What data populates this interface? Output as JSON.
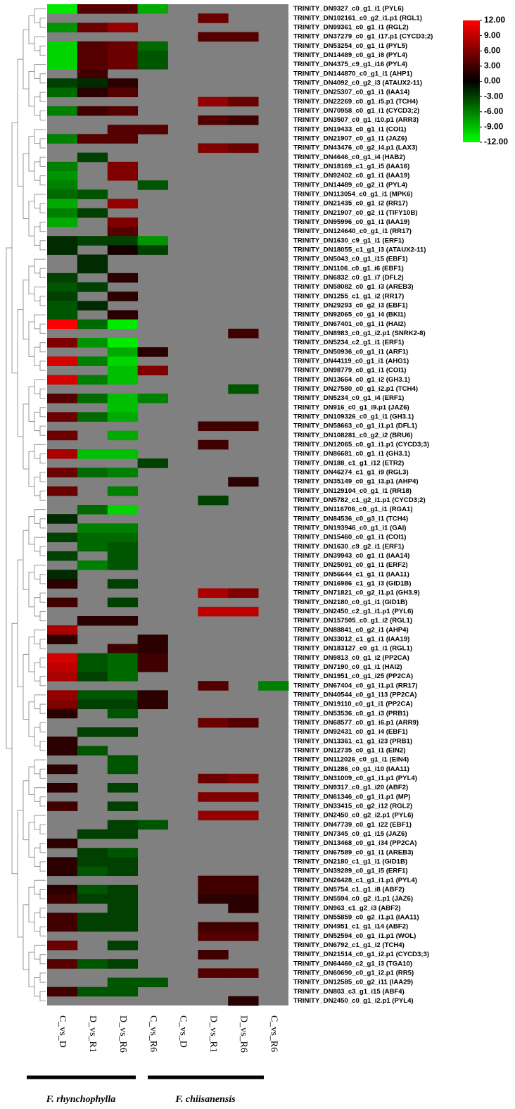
{
  "chart_data": {
    "type": "heatmap",
    "rows": [
      "TRINITY_DN9327_c0_g1_i1 (PYL6)",
      "TRINITY_DN102161_c0_g2_i1.p1 (RGL1)",
      "TRINITY_DN99361_c0_g1_i1 (RGL2)",
      "TRINITY_DN37279_c0_g1_i17.p1 (CYCD3;2)",
      "TRINITY_DN53254_c0_g1_i1 (PYL5)",
      "TRINITY_DN14489_c0_g1_i8 (PYL4)",
      "TRINITY_DN4375_c9_g1_i16 (PYL4)",
      "TRINITY_DN144870_c0_g1_i1 (AHP1)",
      "TRINITY_DN4092_c0_g2_i3 (ATAUX2-11)",
      "TRINITY_DN25307_c0_g1_i1 (IAA14)",
      "TRINITY_DN22269_c0_g1_i5.p1 (TCH4)",
      "TRINITY_DN70958_c0_g1_i1 (CYCD3;2)",
      "TRINITY_DN3507_c0_g1_i10.p1 (ARR3)",
      "TRINITY_DN19433_c0_g1_i1 (COI1)",
      "TRINITY_DN21907_c0_g1_i1 (JAZ6)",
      "TRINITY_DN43476_c0_g2_i4.p1 (LAX3)",
      "TRINITY_DN4646_c0_g1_i4 (HAB2)",
      "TRINITY_DN18169_c1_g1_i5 (IAA16)",
      "TRINITY_DN92402_c0_g1_i1 (IAA19)",
      "TRINITY_DN14489_c0_g2_i1 (PYL4)",
      "TRINITY_DN113054_c0_g1_i1 (MPK6)",
      "TRINITY_DN21435_c0_g1_i2 (RR17)",
      "TRINITY_DN21907_c0_g2_i1 (TIFY10B)",
      "TRINITY_DN95996_c0_g1_i1 (IAA19)",
      "TRINITY_DN124640_c0_g1_i1 (RR17)",
      "TRINITY_DN1630_c9_g1_i1 (ERF1)",
      "TRINITY_DN18055_c1_g1_i3 (ATAUX2-11)",
      "TRINITY_DN5043_c0_g1_i15 (EBF1)",
      "TRINITY_DN1106_c0_g1_i6 (EBF1)",
      "TRINITY_DN6832_c0_g1_i7 (DFL2)",
      "TRINITY_DN58082_c0_g1_i3 (AREB3)",
      "TRINITY_DN1255_c1_g1_i2 (RR17)",
      "TRINITY_DN29293_c0_g2_i3 (EBF1)",
      "TRINITY_DN92065_c0_g1_i4 (BKI1)",
      "TRINITY_DN67401_c0_g1_i1 (HAI2)",
      "TRINITY_DN8983_c0_g1_i2.p1 (SNRK2-8)",
      "TRINITY_DN5234_c2_g1_i1 (ERF1)",
      "TRINITY_DN50936_c0_g1_i1 (ARF1)",
      "TRINITY_DN44119_c0_g1_i1 (AHG1)",
      "TRINITY_DN98779_c0_g1_i1 (COI1)",
      "TRINITY_DN13664_c0_g1_i2 (GH3.1)",
      "TRINITY_DN27580_c0_g1_i2.p1 (TCH4)",
      "TRINITY_DN5234_c0_g1_i4 (ERF1)",
      "TRINITY_DN916_c0_g1_i9.p1 (JAZ6)",
      "TRINITY_DN109326_c0_g1_i1 (GH3.1)",
      "TRINITY_DN58663_c0_g1_i1.p1 (DFL1)",
      "TRINITY_DN108281_c0_g2_i2 (BRU6)",
      "TRINITY_DN12065_c0_g1_i1.p1 (CYCD3;3)",
      "TRINITY_DN86681_c0_g1_i1 (GH3.1)",
      "TRINITY_DN188_c1_g1_i12 (ETR2)",
      "TRINITY_DN46274_c1_g1_i9 (RGL3)",
      "TRINITY_DN35149_c0_g1_i3.p1 (AHP4)",
      "TRINITY_DN129104_c0_g1_i1 (RR18)",
      "TRINITY_DN5782_c1_g2_i1.p1 (CYCD3;2)",
      "TRINITY_DN116706_c0_g1_i1 (RGA1)",
      "TRINITY_DN84536_c0_g3_i1 (TCH4)",
      "TRINITY_DN193946_c0_g1_i1 (GAI)",
      "TRINITY_DN15460_c0_g1_i1 (COI1)",
      "TRINITY_DN1630_c9_g2_i1 (ERF1)",
      "TRINITY_DN39943_c0_g1_i1 (IAA14)",
      "TRINITY_DN25091_c0_g1_i1 (ERF2)",
      "TRINITY_DN56644_c1_g1_i1 (IAA11)",
      "TRINITY_DN16986_c1_g1_i3 (GID1B)",
      "TRINITY_DN71821_c0_g2_i1.p1 (GH3.9)",
      "TRINITY_DN2180_c0_g1_i1 (GID1B)",
      "TRINITY_DN2450_c2_g1_i1.p1 (PYL6)",
      "TRINITY_DN157505_c0_g1_i2 (RGL1)",
      "TRINITY_DN88841_c0_g2_i1 (AHP4)",
      "TRINITY_DN33012_c1_g1_i1 (IAA19)",
      "TRINITY_DN183127_c0_g1_i1 (RGL1)",
      "TRINITY_DN9813_c0_g1_i2 (PP2CA)",
      "TRINITY_DN7190_c0_g1_i1 (HAI2)",
      "TRINITY_DN1951_c0_g1_i25 (PP2CA)",
      "TRINITY_DN67404_c0_g1_i1.p1 (RR17)",
      "TRINITY_DN40544_c0_g1_i13 (PP2CA)",
      "TRINITY_DN19110_c0_g1_i1 (PP2CA)",
      "TRINITY_DN53536_c0_g1_i3 (PRB1)",
      "TRINITY_DN68577_c0_g1_i6.p1 (ARR9)",
      "TRINITY_DN92431_c0_g1_i4 (EBF1)",
      "TRINITY_DN13361_c1_g1_i23 (PRB1)",
      "TRINITY_DN12735_c0_g1_i1 (EIN2)",
      "TRINITY_DN112026_c0_g1_i1 (EIN4)",
      "TRINITY_DN1286_c0_g1_i10 (IAA11)",
      "TRINITY_DN31009_c0_g1_i1.p1 (PYL4)",
      "TRINITY_DN9317_c0_g1_i20 (ABF2)",
      "TRINITY_DN61346_c0_g1_i1.p1 (MP)",
      "TRINITY_DN33415_c0_g2_i12 (RGL2)",
      "TRINITY_DN2450_c0_g2_i2.p1 (PYL6)",
      "TRINITY_DN47739_c0_g1_i22 (EBF1)",
      "TRINITY_DN7345_c0_g1_i15 (JAZ6)",
      "TRINITY_DN13468_c0_g1_i34 (PP2CA)",
      "TRINITY_DN67589_c0_g1_i1 (AREB3)",
      "TRINITY_DN2180_c1_g1_i1 (GID1B)",
      "TRINITY_DN39289_c0_g1_i5 (ERF1)",
      "TRINITY_DN26428_c1_g1_i1.p1 (PYL4)",
      "TRINITY_DN5754_c1_g1_i8 (ABF2)",
      "TRINITY_DN5594_c0_g2_i1.p1 (JAZ6)",
      "TRINITY_DN963_c1_g2_i3 (ABF2)",
      "TRINITY_DN55859_c0_g2_i1.p1 (IAA11)",
      "TRINITY_DN4951_c1_g1_i14 (ABF2)",
      "TRINITY_DN52594_c0_g1_i1.p1 (WOL)",
      "TRINITY_DN6792_c1_g1_i2 (TCH4)",
      "TRINITY_DN21514_c0_g1_i2.p1 (CYCD3;3)",
      "TRINITY_DN64460_c2_g1_i3 (TGA10)",
      "TRINITY_DN60690_c0_g1_i2.p1 (RR5)",
      "TRINITY_DN12585_c0_g2_i11 (IAA29)",
      "TRINITY_DN803_c3_g1_i15 (ABF4)",
      "TRINITY_DN2450_c0_g1_i2.p1 (PYL4)"
    ],
    "columns": [
      "C_vs_D",
      "D_vs_R1",
      "D_vs_R6",
      "C_vs_R6",
      "C_vs_D",
      "D_vs_R1",
      "D_vs_R6",
      "C_vs_R6"
    ],
    "groups": [
      "F. rhynchophylla",
      "F. chiisanensis"
    ],
    "values": [
      [
        -11,
        4,
        4,
        -8,
        null,
        null,
        null,
        null
      ],
      [
        null,
        null,
        null,
        null,
        null,
        5,
        null,
        null
      ],
      [
        -7,
        5,
        7,
        null,
        null,
        null,
        null,
        null
      ],
      [
        null,
        null,
        null,
        null,
        null,
        4,
        4,
        null
      ],
      [
        -10,
        4,
        5,
        -5,
        null,
        null,
        null,
        null
      ],
      [
        -10,
        4,
        5,
        -4,
        null,
        null,
        null,
        null
      ],
      [
        -10,
        4,
        5,
        -4,
        null,
        null,
        null,
        null
      ],
      [
        null,
        3,
        null,
        null,
        null,
        null,
        null,
        null
      ],
      [
        -3,
        -2,
        2,
        null,
        null,
        null,
        null,
        null
      ],
      [
        -5,
        2,
        4,
        null,
        null,
        null,
        null,
        null
      ],
      [
        null,
        null,
        null,
        null,
        null,
        7,
        5,
        null
      ],
      [
        -6,
        3,
        4,
        null,
        null,
        null,
        null,
        null
      ],
      [
        null,
        null,
        null,
        null,
        null,
        4,
        3,
        null
      ],
      [
        null,
        null,
        4,
        4,
        null,
        null,
        null,
        null
      ],
      [
        -6,
        4,
        4,
        null,
        null,
        null,
        null,
        null
      ],
      [
        null,
        null,
        null,
        null,
        null,
        6,
        5,
        null
      ],
      [
        null,
        -3,
        null,
        null,
        null,
        null,
        null,
        null
      ],
      [
        -6,
        null,
        6,
        null,
        null,
        null,
        null,
        null
      ],
      [
        -7,
        null,
        6,
        null,
        null,
        null,
        null,
        null
      ],
      [
        -6,
        null,
        null,
        -4,
        null,
        null,
        null,
        null
      ],
      [
        -5,
        -4,
        null,
        null,
        null,
        null,
        null,
        null
      ],
      [
        -8,
        null,
        7,
        null,
        null,
        null,
        null,
        null
      ],
      [
        -6,
        -3,
        null,
        null,
        null,
        null,
        null,
        null
      ],
      [
        -8,
        null,
        6,
        null,
        null,
        null,
        null,
        null
      ],
      [
        null,
        null,
        4,
        null,
        null,
        null,
        null,
        null
      ],
      [
        -2,
        -3,
        -3,
        -7,
        null,
        null,
        null,
        null
      ],
      [
        -2,
        null,
        1,
        -3,
        null,
        null,
        null,
        null
      ],
      [
        null,
        -2,
        null,
        null,
        null,
        null,
        null,
        null
      ],
      [
        null,
        -2,
        null,
        null,
        null,
        null,
        null,
        null
      ],
      [
        -3,
        null,
        2,
        null,
        null,
        null,
        null,
        null
      ],
      [
        -4,
        -3,
        null,
        null,
        null,
        null,
        null,
        null
      ],
      [
        -3,
        null,
        2,
        null,
        null,
        null,
        null,
        null
      ],
      [
        -4,
        -2,
        null,
        null,
        null,
        null,
        null,
        null
      ],
      [
        -4,
        null,
        2,
        null,
        null,
        null,
        null,
        null
      ],
      [
        12,
        -5,
        -11,
        null,
        null,
        null,
        null,
        null
      ],
      [
        null,
        null,
        null,
        null,
        null,
        null,
        3,
        null
      ],
      [
        6,
        -7,
        -11,
        null,
        null,
        null,
        null,
        null
      ],
      [
        null,
        null,
        -8,
        2,
        null,
        null,
        null,
        null
      ],
      [
        10,
        -6,
        -10,
        null,
        null,
        null,
        null,
        null
      ],
      [
        null,
        null,
        -9,
        6,
        null,
        null,
        null,
        null
      ],
      [
        10,
        -6,
        -9,
        null,
        null,
        null,
        null,
        null
      ],
      [
        null,
        null,
        null,
        null,
        null,
        null,
        -4,
        null
      ],
      [
        4,
        -5,
        -9,
        -6,
        null,
        null,
        null,
        null
      ],
      [
        null,
        null,
        -9,
        null,
        null,
        null,
        null,
        null
      ],
      [
        5,
        -5,
        -8,
        null,
        null,
        null,
        null,
        null
      ],
      [
        null,
        null,
        null,
        null,
        null,
        3,
        3,
        null
      ],
      [
        5,
        null,
        -8,
        null,
        null,
        null,
        null,
        null
      ],
      [
        null,
        null,
        null,
        null,
        null,
        3,
        null,
        null
      ],
      [
        8,
        -9,
        -9,
        null,
        null,
        null,
        null,
        null
      ],
      [
        null,
        null,
        null,
        -3,
        null,
        null,
        null,
        null
      ],
      [
        5,
        -5,
        -6,
        null,
        null,
        null,
        null,
        null
      ],
      [
        null,
        null,
        null,
        null,
        null,
        null,
        2,
        null
      ],
      [
        5,
        null,
        -6,
        null,
        null,
        null,
        null,
        null
      ],
      [
        null,
        null,
        null,
        null,
        null,
        -3,
        null,
        null
      ],
      [
        null,
        -5,
        -10,
        null,
        null,
        null,
        null,
        null
      ],
      [
        -2,
        null,
        null,
        null,
        null,
        null,
        null,
        null
      ],
      [
        null,
        -6,
        -6,
        null,
        null,
        null,
        null,
        null
      ],
      [
        -3,
        -5,
        -5,
        null,
        null,
        null,
        null,
        null
      ],
      [
        null,
        -5,
        -4,
        null,
        null,
        null,
        null,
        null
      ],
      [
        -3,
        null,
        -4,
        null,
        null,
        null,
        null,
        null
      ],
      [
        null,
        -6,
        -4,
        null,
        null,
        null,
        null,
        null
      ],
      [
        -2,
        null,
        null,
        null,
        null,
        null,
        null,
        null
      ],
      [
        2,
        null,
        -3,
        null,
        null,
        null,
        null,
        null
      ],
      [
        null,
        null,
        null,
        null,
        null,
        8,
        6,
        null
      ],
      [
        3,
        null,
        -3,
        null,
        null,
        null,
        null,
        null
      ],
      [
        null,
        null,
        null,
        null,
        null,
        9,
        9,
        null
      ],
      [
        null,
        2,
        2,
        null,
        null,
        null,
        null,
        null
      ],
      [
        8,
        null,
        null,
        null,
        null,
        null,
        null,
        null
      ],
      [
        2,
        null,
        null,
        2,
        null,
        null,
        null,
        null
      ],
      [
        null,
        null,
        3,
        2,
        null,
        null,
        null,
        null
      ],
      [
        10,
        -4,
        -5,
        3,
        null,
        null,
        null,
        null
      ],
      [
        9,
        -4,
        -5,
        3,
        null,
        null,
        null,
        null
      ],
      [
        8,
        -3,
        -5,
        null,
        null,
        null,
        null,
        null
      ],
      [
        null,
        null,
        null,
        null,
        null,
        4,
        null,
        -6
      ],
      [
        7,
        -4,
        -4,
        2,
        null,
        null,
        null,
        null
      ],
      [
        6,
        -3,
        -3,
        2,
        null,
        null,
        null,
        null
      ],
      [
        2,
        null,
        -4,
        null,
        null,
        null,
        null,
        null
      ],
      [
        null,
        null,
        null,
        null,
        null,
        5,
        4,
        null
      ],
      [
        null,
        -3,
        -3,
        null,
        null,
        null,
        null,
        null
      ],
      [
        2,
        null,
        null,
        null,
        null,
        null,
        null,
        null
      ],
      [
        2,
        -4,
        null,
        null,
        null,
        null,
        null,
        null
      ],
      [
        null,
        null,
        -4,
        null,
        null,
        null,
        null,
        null
      ],
      [
        2,
        null,
        -4,
        null,
        null,
        null,
        null,
        null
      ],
      [
        null,
        null,
        null,
        null,
        null,
        5,
        6,
        null
      ],
      [
        2,
        null,
        -3,
        null,
        null,
        null,
        null,
        null
      ],
      [
        null,
        null,
        null,
        null,
        null,
        6,
        6,
        null
      ],
      [
        3,
        null,
        -3,
        null,
        null,
        null,
        null,
        null
      ],
      [
        null,
        null,
        null,
        null,
        null,
        7,
        7,
        null
      ],
      [
        null,
        null,
        -3,
        -4,
        null,
        null,
        null,
        null
      ],
      [
        null,
        -3,
        -3,
        null,
        null,
        null,
        null,
        null
      ],
      [
        2,
        null,
        null,
        null,
        null,
        null,
        null,
        null
      ],
      [
        null,
        -3,
        -4,
        null,
        null,
        null,
        null,
        null
      ],
      [
        2,
        -3,
        -3,
        null,
        null,
        null,
        null,
        null
      ],
      [
        2,
        -4,
        -3,
        null,
        null,
        null,
        null,
        null
      ],
      [
        null,
        null,
        null,
        null,
        null,
        3,
        3,
        null
      ],
      [
        2,
        -4,
        -3,
        null,
        null,
        3,
        3,
        null
      ],
      [
        3,
        -3,
        -3,
        null,
        null,
        2,
        2,
        null
      ],
      [
        null,
        null,
        -3,
        null,
        null,
        null,
        2,
        null
      ],
      [
        3,
        -3,
        -3,
        null,
        null,
        null,
        null,
        null
      ],
      [
        3,
        -3,
        -3,
        null,
        null,
        3,
        3,
        null
      ],
      [
        null,
        null,
        null,
        null,
        null,
        4,
        4,
        null
      ],
      [
        5,
        null,
        -3,
        null,
        null,
        null,
        null,
        null
      ],
      [
        null,
        null,
        null,
        null,
        null,
        3,
        null,
        null
      ],
      [
        4,
        -4,
        -3,
        null,
        null,
        null,
        null,
        null
      ],
      [
        null,
        null,
        null,
        null,
        null,
        4,
        4,
        null
      ],
      [
        null,
        null,
        -4,
        -4,
        null,
        null,
        null,
        null
      ],
      [
        3,
        -4,
        -4,
        null,
        null,
        null,
        null,
        null
      ],
      [
        null,
        null,
        null,
        null,
        null,
        null,
        2,
        null
      ]
    ],
    "colors": {
      "low": "#00ff00",
      "mid": "#000000",
      "high": "#ff0000",
      "missing": "#808080"
    },
    "clim": [
      -12,
      12
    ],
    "cticks": [
      {
        "value": 12,
        "label": "12.00"
      },
      {
        "value": 9,
        "label": "9.00"
      },
      {
        "value": 6,
        "label": "6.00"
      },
      {
        "value": 3,
        "label": "3.00"
      },
      {
        "value": 0,
        "label": "0.00"
      },
      {
        "value": -3,
        "label": "-3.00"
      },
      {
        "value": -6,
        "label": "-6.00"
      },
      {
        "value": -9,
        "label": "-9.00"
      },
      {
        "value": -12,
        "label": "-12.00"
      }
    ]
  }
}
